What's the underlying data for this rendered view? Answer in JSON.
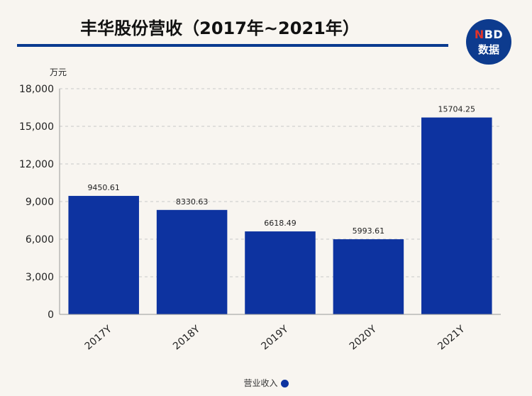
{
  "title": "丰华股份营收（2017年~2021年）",
  "logo": {
    "line1_n": "N",
    "line1_rest": "BD",
    "line2": "数据"
  },
  "legend": {
    "label": "营业收入"
  },
  "colors": {
    "bar": "#0d33a0",
    "rule": "#0a3b8f",
    "logo": "#0d3b8e"
  },
  "chart_data": {
    "type": "bar",
    "categories": [
      "2017Y",
      "2018Y",
      "2019Y",
      "2020Y",
      "2021Y"
    ],
    "series": [
      {
        "name": "营业收入",
        "values": [
          9450.61,
          8330.63,
          6618.49,
          5993.61,
          15704.25
        ]
      }
    ],
    "data_labels": [
      "9450.61",
      "8330.63",
      "6618.49",
      "5993.61",
      "15704.25"
    ],
    "yunit": "万元",
    "ylim": [
      0,
      18000
    ],
    "yticks": [
      0,
      3000,
      6000,
      9000,
      12000,
      15000,
      18000
    ],
    "ytick_labels": [
      "0",
      "3,000",
      "6,000",
      "9,000",
      "12,000",
      "15,000",
      "18,000"
    ],
    "grid": true,
    "legend_position": "bottom"
  }
}
